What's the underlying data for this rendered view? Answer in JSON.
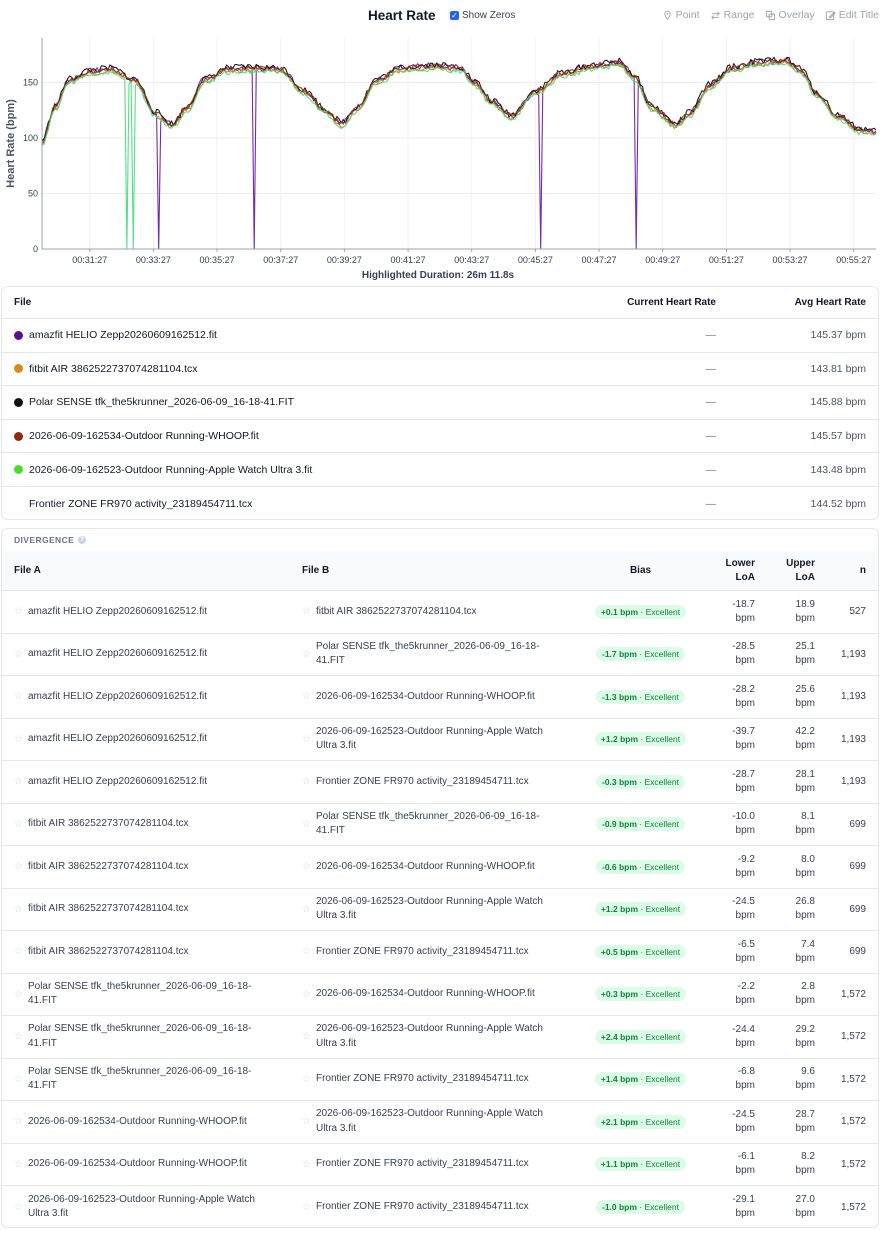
{
  "header": {
    "title": "Heart Rate",
    "show_zeros_label": "Show Zeros",
    "show_zeros_checked": true,
    "tools": [
      {
        "label": "Point",
        "icon": "pin-icon"
      },
      {
        "label": "Range",
        "icon": "range-arrows-icon"
      },
      {
        "label": "Overlay",
        "icon": "overlay-icon"
      },
      {
        "label": "Edit Title",
        "icon": "edit-icon"
      }
    ]
  },
  "chart_data": {
    "type": "line",
    "ylabel": "Heart Rate (bpm)",
    "ylim": [
      0,
      190
    ],
    "yticks": [
      0,
      50,
      100,
      150
    ],
    "xlim": [
      0,
      1572
    ],
    "xticks": [
      "00:31:27",
      "00:33:27",
      "00:35:27",
      "00:37:27",
      "00:39:27",
      "00:41:27",
      "00:43:27",
      "00:45:27",
      "00:47:27",
      "00:49:27",
      "00:51:27",
      "00:53:27",
      "00:55:27"
    ],
    "xtick_seconds": [
      90,
      210,
      330,
      450,
      570,
      690,
      810,
      930,
      1050,
      1170,
      1290,
      1410,
      1530
    ],
    "grid": true,
    "series": [
      {
        "color": "#6b21a8",
        "jitter": 3,
        "offset": 0,
        "dips": [
          130,
          220,
          310,
          400,
          570,
          670,
          940,
          1120
        ]
      },
      {
        "color": "#d97706",
        "jitter": 2,
        "offset": -2,
        "dips": []
      },
      {
        "color": "#111111",
        "jitter": 3,
        "offset": 1,
        "dips": []
      },
      {
        "color": "#9a3412",
        "jitter": 2,
        "offset": 0,
        "dips": []
      },
      {
        "color": "#4ade80",
        "jitter": 2,
        "offset": -3,
        "dips": [
          160,
          172
        ]
      }
    ],
    "profile": [
      [
        0,
        97
      ],
      [
        25,
        128
      ],
      [
        50,
        152
      ],
      [
        90,
        160
      ],
      [
        130,
        162
      ],
      [
        175,
        152
      ],
      [
        215,
        122
      ],
      [
        245,
        112
      ],
      [
        275,
        128
      ],
      [
        305,
        152
      ],
      [
        350,
        162
      ],
      [
        400,
        163
      ],
      [
        450,
        162
      ],
      [
        495,
        142
      ],
      [
        535,
        125
      ],
      [
        565,
        113
      ],
      [
        595,
        128
      ],
      [
        630,
        152
      ],
      [
        680,
        163
      ],
      [
        740,
        165
      ],
      [
        790,
        163
      ],
      [
        815,
        150
      ],
      [
        850,
        132
      ],
      [
        885,
        120
      ],
      [
        930,
        142
      ],
      [
        980,
        158
      ],
      [
        1040,
        165
      ],
      [
        1090,
        168
      ],
      [
        1115,
        156
      ],
      [
        1150,
        128
      ],
      [
        1195,
        112
      ],
      [
        1220,
        122
      ],
      [
        1260,
        148
      ],
      [
        1300,
        163
      ],
      [
        1350,
        168
      ],
      [
        1400,
        170
      ],
      [
        1430,
        162
      ],
      [
        1460,
        140
      ],
      [
        1500,
        120
      ],
      [
        1540,
        108
      ],
      [
        1572,
        105
      ]
    ]
  },
  "highlighted_duration": "Highlighted Duration: 26m 11.8s",
  "files": {
    "headers": {
      "file": "File",
      "current": "Current Heart Rate",
      "avg": "Avg Heart Rate"
    },
    "rows": [
      {
        "name": "amazfit HELIO Zepp20260609162512.fit",
        "color": "#5b0f8f",
        "current": "—",
        "avg": "145.37 bpm"
      },
      {
        "name": "fitbit AIR 3862522737074281104.tcx",
        "color": "#d98a1c",
        "current": "—",
        "avg": "143.81 bpm"
      },
      {
        "name": "Polar SENSE tfk_the5krunner_2026-06-09_16-18-41.FIT",
        "color": "#111111",
        "current": "—",
        "avg": "145.88 bpm"
      },
      {
        "name": "2026-06-09-162534-Outdoor Running-WHOOP.fit",
        "color": "#8f2a0c",
        "current": "—",
        "avg": "145.57 bpm"
      },
      {
        "name": "2026-06-09-162523-Outdoor Running-Apple Watch Ultra 3.fit",
        "color": "#4ade2a",
        "current": "—",
        "avg": "143.48 bpm"
      },
      {
        "name": "Frontier ZONE FR970 activity_23189454711.tcx",
        "color": "",
        "current": "—",
        "avg": "144.52 bpm"
      }
    ]
  },
  "divergence": {
    "label": "DIVERGENCE",
    "headers": {
      "file_a": "File A",
      "file_b": "File B",
      "bias": "Bias",
      "lower_1": "Lower",
      "lower_2": "LoA",
      "upper_1": "Upper",
      "upper_2": "LoA",
      "n": "n"
    },
    "rows": [
      {
        "a": "amazfit HELIO Zepp20260609162512.fit",
        "b": "fitbit AIR 3862522737074281104.tcx",
        "bias": "+0.1 bpm",
        "rating": "Excellent",
        "lower": "-18.7",
        "upper": "18.9",
        "unit": "bpm",
        "n": "527"
      },
      {
        "a": "amazfit HELIO Zepp20260609162512.fit",
        "b": "Polar SENSE tfk_the5krunner_2026-06-09_16-18-41.FIT",
        "bias": "-1.7 bpm",
        "rating": "Excellent",
        "lower": "-28.5",
        "upper": "25.1",
        "unit": "bpm",
        "n": "1,193"
      },
      {
        "a": "amazfit HELIO Zepp20260609162512.fit",
        "b": "2026-06-09-162534-Outdoor Running-WHOOP.fit",
        "bias": "-1.3 bpm",
        "rating": "Excellent",
        "lower": "-28.2",
        "upper": "25.6",
        "unit": "bpm",
        "n": "1,193"
      },
      {
        "a": "amazfit HELIO Zepp20260609162512.fit",
        "b": "2026-06-09-162523-Outdoor Running-Apple Watch Ultra 3.fit",
        "bias": "+1.2 bpm",
        "rating": "Excellent",
        "lower": "-39.7",
        "upper": "42.2",
        "unit": "bpm",
        "n": "1,193"
      },
      {
        "a": "amazfit HELIO Zepp20260609162512.fit",
        "b": "Frontier ZONE FR970 activity_23189454711.tcx",
        "bias": "-0.3 bpm",
        "rating": "Excellent",
        "lower": "-28.7",
        "upper": "28.1",
        "unit": "bpm",
        "n": "1,193"
      },
      {
        "a": "fitbit AIR 3862522737074281104.tcx",
        "b": "Polar SENSE tfk_the5krunner_2026-06-09_16-18-41.FIT",
        "bias": "-0.9 bpm",
        "rating": "Excellent",
        "lower": "-10.0",
        "upper": "8.1",
        "unit": "bpm",
        "n": "699"
      },
      {
        "a": "fitbit AIR 3862522737074281104.tcx",
        "b": "2026-06-09-162534-Outdoor Running-WHOOP.fit",
        "bias": "-0.6 bpm",
        "rating": "Excellent",
        "lower": "-9.2",
        "upper": "8.0",
        "unit": "bpm",
        "n": "699"
      },
      {
        "a": "fitbit AIR 3862522737074281104.tcx",
        "b": "2026-06-09-162523-Outdoor Running-Apple Watch Ultra 3.fit",
        "bias": "+1.2 bpm",
        "rating": "Excellent",
        "lower": "-24.5",
        "upper": "26.8",
        "unit": "bpm",
        "n": "699"
      },
      {
        "a": "fitbit AIR 3862522737074281104.tcx",
        "b": "Frontier ZONE FR970 activity_23189454711.tcx",
        "bias": "+0.5 bpm",
        "rating": "Excellent",
        "lower": "-6.5",
        "upper": "7.4",
        "unit": "bpm",
        "n": "699"
      },
      {
        "a": "Polar SENSE tfk_the5krunner_2026-06-09_16-18-41.FIT",
        "b": "2026-06-09-162534-Outdoor Running-WHOOP.fit",
        "bias": "+0.3 bpm",
        "rating": "Excellent",
        "lower": "-2.2",
        "upper": "2.8",
        "unit": "bpm",
        "n": "1,572"
      },
      {
        "a": "Polar SENSE tfk_the5krunner_2026-06-09_16-18-41.FIT",
        "b": "2026-06-09-162523-Outdoor Running-Apple Watch Ultra 3.fit",
        "bias": "+2.4 bpm",
        "rating": "Excellent",
        "lower": "-24.4",
        "upper": "29.2",
        "unit": "bpm",
        "n": "1,572"
      },
      {
        "a": "Polar SENSE tfk_the5krunner_2026-06-09_16-18-41.FIT",
        "b": "Frontier ZONE FR970 activity_23189454711.tcx",
        "bias": "+1.4 bpm",
        "rating": "Excellent",
        "lower": "-6.8",
        "upper": "9.6",
        "unit": "bpm",
        "n": "1,572"
      },
      {
        "a": "2026-06-09-162534-Outdoor Running-WHOOP.fit",
        "b": "2026-06-09-162523-Outdoor Running-Apple Watch Ultra 3.fit",
        "bias": "+2.1 bpm",
        "rating": "Excellent",
        "lower": "-24.5",
        "upper": "28.7",
        "unit": "bpm",
        "n": "1,572"
      },
      {
        "a": "2026-06-09-162534-Outdoor Running-WHOOP.fit",
        "b": "Frontier ZONE FR970 activity_23189454711.tcx",
        "bias": "+1.1 bpm",
        "rating": "Excellent",
        "lower": "-6.1",
        "upper": "8.2",
        "unit": "bpm",
        "n": "1,572"
      },
      {
        "a": "2026-06-09-162523-Outdoor Running-Apple Watch Ultra 3.fit",
        "b": "Frontier ZONE FR970 activity_23189454711.tcx",
        "bias": "-1.0 bpm",
        "rating": "Excellent",
        "lower": "-29.1",
        "upper": "27.0",
        "unit": "bpm",
        "n": "1,572"
      }
    ]
  }
}
